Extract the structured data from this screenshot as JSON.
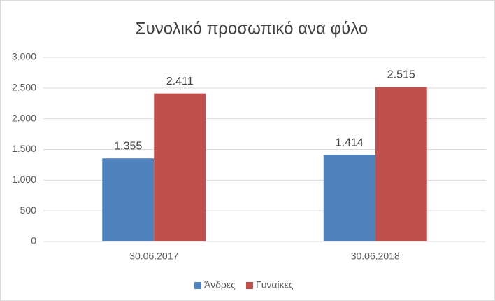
{
  "chart_data": {
    "type": "bar",
    "title": "Συνολικό προσωπικό ανα φύλο",
    "categories": [
      "30.06.2017",
      "30.06.2018"
    ],
    "series": [
      {
        "name": "Άνδρες",
        "color": "#4f81bd",
        "values": [
          1355,
          1414
        ],
        "value_labels": [
          "1.355",
          "1.414"
        ]
      },
      {
        "name": "Γυναίκες",
        "color": "#c0504d",
        "values": [
          2411,
          2515
        ],
        "value_labels": [
          "2.411",
          "2.515"
        ]
      }
    ],
    "ylim": [
      0,
      3000
    ],
    "yticks": [
      0,
      500,
      {
        "value": 1000,
        "label": "1.000"
      },
      {
        "value": 1500,
        "label": "1.500"
      },
      {
        "value": 2000,
        "label": "2.000"
      },
      {
        "value": 2500,
        "label": "2.500"
      },
      {
        "value": 3000,
        "label": "3.000"
      }
    ],
    "grid": true,
    "legend": "bottom"
  }
}
